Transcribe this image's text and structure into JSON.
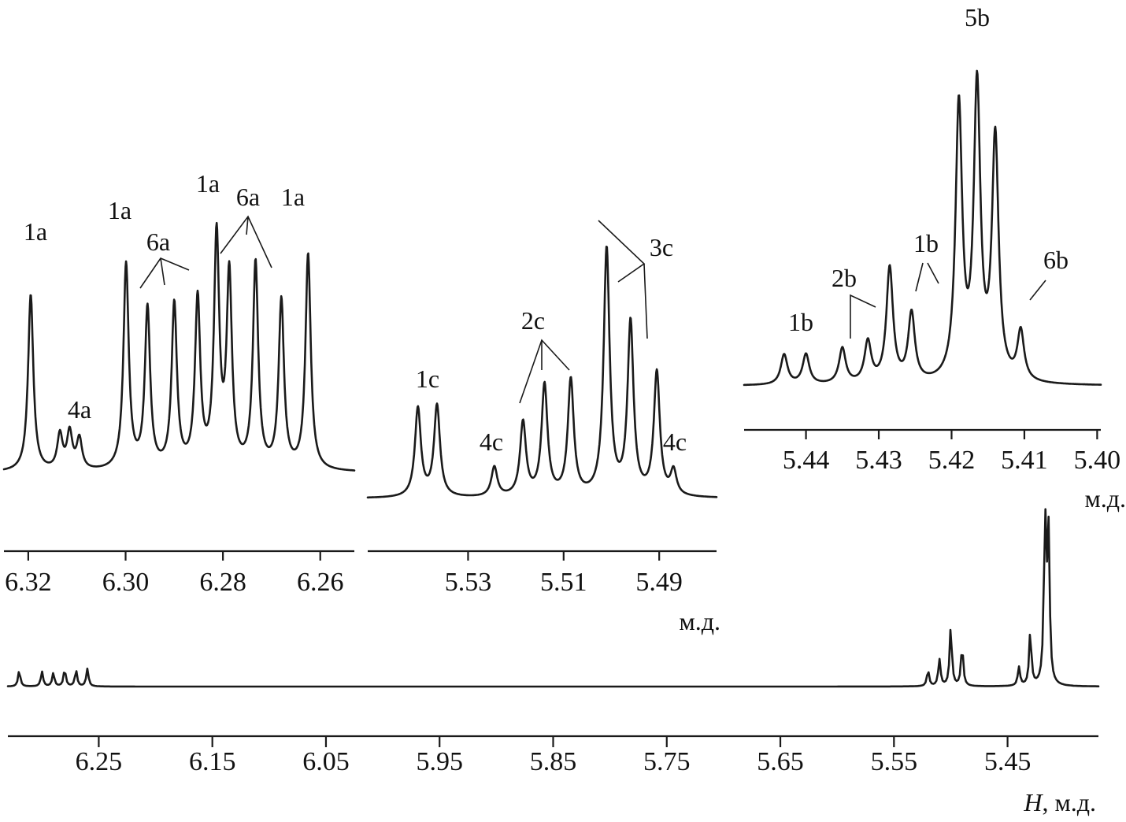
{
  "chart_data": [
    {
      "type": "line",
      "panel": "main",
      "xlabel_var": "H",
      "xlabel_unit": ", м.д.",
      "xlim": [
        6.33,
        5.37
      ],
      "x_ticks": [
        "6.25",
        "6.15",
        "6.05",
        "5.95",
        "5.85",
        "5.75",
        "5.65",
        "5.55",
        "5.45"
      ],
      "peaks": [
        {
          "x": 6.32,
          "h": 0.3
        },
        {
          "x": 6.3,
          "h": 0.28
        },
        {
          "x": 6.29,
          "h": 0.25
        },
        {
          "x": 6.28,
          "h": 0.32
        },
        {
          "x": 6.27,
          "h": 0.3
        },
        {
          "x": 6.26,
          "h": 0.33
        },
        {
          "x": 5.52,
          "h": 0.3
        },
        {
          "x": 5.51,
          "h": 0.5
        },
        {
          "x": 5.5,
          "h": 1.1
        },
        {
          "x": 5.49,
          "h": 0.75
        },
        {
          "x": 5.44,
          "h": 0.35
        },
        {
          "x": 5.43,
          "h": 1.0
        },
        {
          "x": 5.417,
          "h": 3.1
        },
        {
          "x": 5.414,
          "h": 2.8
        }
      ]
    },
    {
      "type": "line",
      "panel": "inset-6.3",
      "xlabel_unit": "",
      "xlim": [
        6.325,
        6.253
      ],
      "x_ticks": [
        "6.32",
        "6.30",
        "6.28",
        "6.26"
      ],
      "peaks": [
        {
          "x": 6.3195,
          "h": 0.86,
          "label": "1a"
        },
        {
          "x": 6.3135,
          "h": 0.17,
          "label": "4a"
        },
        {
          "x": 6.3115,
          "h": 0.18
        },
        {
          "x": 6.3095,
          "h": 0.15
        },
        {
          "x": 6.2999,
          "h": 1.0,
          "label": "1a"
        },
        {
          "x": 6.2955,
          "h": 0.78,
          "label": "6a"
        },
        {
          "x": 6.29,
          "h": 0.8,
          "label": "6a"
        },
        {
          "x": 6.2852,
          "h": 0.82,
          "label": "6a"
        },
        {
          "x": 6.2813,
          "h": 1.12,
          "label": "1a"
        },
        {
          "x": 6.2787,
          "h": 0.93,
          "label": "6a"
        },
        {
          "x": 6.2733,
          "h": 1.0,
          "label": "6a"
        },
        {
          "x": 6.268,
          "h": 0.82,
          "label": "6a"
        },
        {
          "x": 6.2625,
          "h": 1.05,
          "label": "1a"
        }
      ],
      "labels": [
        "1a",
        "4a",
        "1a",
        "6a",
        "1a",
        "6a",
        "1a"
      ]
    },
    {
      "type": "line",
      "panel": "inset-5.5",
      "xlabel_unit": "м.д.",
      "xlim": [
        5.551,
        5.478
      ],
      "x_ticks": [
        "5.53",
        "5.51",
        "5.49"
      ],
      "peaks": [
        {
          "x": 5.5405,
          "h": 0.36,
          "label": "1c"
        },
        {
          "x": 5.5365,
          "h": 0.37,
          "label": "1c"
        },
        {
          "x": 5.5245,
          "h": 0.12,
          "label": "4c"
        },
        {
          "x": 5.5185,
          "h": 0.3,
          "label": "2c"
        },
        {
          "x": 5.514,
          "h": 0.45,
          "label": "2c"
        },
        {
          "x": 5.5085,
          "h": 0.47,
          "label": "2c"
        },
        {
          "x": 5.501,
          "h": 1.0,
          "label": "3c"
        },
        {
          "x": 5.496,
          "h": 0.7,
          "label": "3c"
        },
        {
          "x": 5.4905,
          "h": 0.5,
          "label": "3c"
        },
        {
          "x": 5.487,
          "h": 0.1,
          "label": "4c"
        }
      ],
      "labels": [
        "1c",
        "2c",
        "3c",
        "4c",
        "4c"
      ]
    },
    {
      "type": "line",
      "panel": "inset-5.42",
      "xlabel_unit": "м.д.",
      "xlim": [
        5.4485,
        5.3995
      ],
      "x_ticks": [
        "5.44",
        "5.43",
        "5.42",
        "5.41",
        "5.40"
      ],
      "peaks": [
        {
          "x": 5.443,
          "h": 0.11,
          "label": "1b"
        },
        {
          "x": 5.44,
          "h": 0.11,
          "label": "1b"
        },
        {
          "x": 5.435,
          "h": 0.13,
          "label": "2b"
        },
        {
          "x": 5.4315,
          "h": 0.15,
          "label": "2b"
        },
        {
          "x": 5.4285,
          "h": 0.42
        },
        {
          "x": 5.4255,
          "h": 0.25,
          "label": "1b"
        },
        {
          "x": 5.419,
          "h": 1.0,
          "label": "5b"
        },
        {
          "x": 5.4165,
          "h": 1.06,
          "label": "5b"
        },
        {
          "x": 5.414,
          "h": 0.88
        },
        {
          "x": 5.4105,
          "h": 0.18,
          "label": "6b"
        }
      ],
      "labels": [
        "1b",
        "2b",
        "1b",
        "5b",
        "6b"
      ]
    }
  ]
}
